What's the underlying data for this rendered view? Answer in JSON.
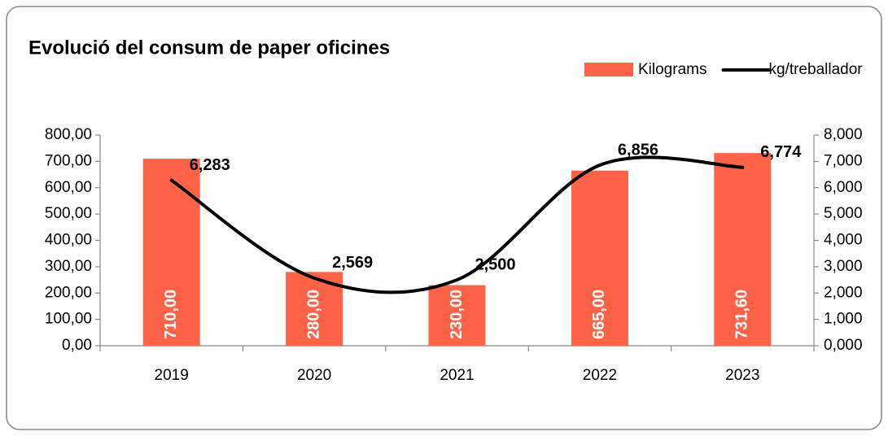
{
  "chart_data": {
    "type": "bar",
    "title": "Evolució del consum de paper oficines",
    "categories": [
      "2019",
      "2020",
      "2021",
      "2022",
      "2023"
    ],
    "series": [
      {
        "name": "Kilograms",
        "type": "bar",
        "color": "#ff6347",
        "values": [
          710,
          280,
          230,
          665,
          731.6
        ],
        "value_labels": [
          "710,00",
          "280,00",
          "230,00",
          "665,00",
          "731,60"
        ]
      },
      {
        "name": "kg/treballador",
        "type": "line",
        "axis": "y2",
        "color": "#000000",
        "values": [
          6.283,
          2.569,
          2.5,
          6.856,
          6.774
        ],
        "value_labels": [
          "6,283",
          "2,569",
          "2,500",
          "6,856",
          "6,774"
        ]
      }
    ],
    "ylim": [
      0,
      800
    ],
    "yticks": [
      {
        "value": 0,
        "label": "0,00"
      },
      {
        "value": 100,
        "label": "100,00"
      },
      {
        "value": 200,
        "label": "200,00"
      },
      {
        "value": 300,
        "label": "300,00"
      },
      {
        "value": 400,
        "label": "400,00"
      },
      {
        "value": 500,
        "label": "500,00"
      },
      {
        "value": 600,
        "label": "600,00"
      },
      {
        "value": 700,
        "label": "700,00"
      },
      {
        "value": 800,
        "label": "800,00"
      }
    ],
    "y2lim": [
      0,
      8
    ],
    "y2ticks": [
      {
        "value": 0,
        "label": "0,000"
      },
      {
        "value": 1,
        "label": "1,000"
      },
      {
        "value": 2,
        "label": "2,000"
      },
      {
        "value": 3,
        "label": "3,000"
      },
      {
        "value": 4,
        "label": "4,000"
      },
      {
        "value": 5,
        "label": "5,000"
      },
      {
        "value": 6,
        "label": "6,000"
      },
      {
        "value": 7,
        "label": "7,000"
      },
      {
        "value": 8,
        "label": "8,000"
      }
    ],
    "grid": false,
    "legend": "top-right"
  }
}
